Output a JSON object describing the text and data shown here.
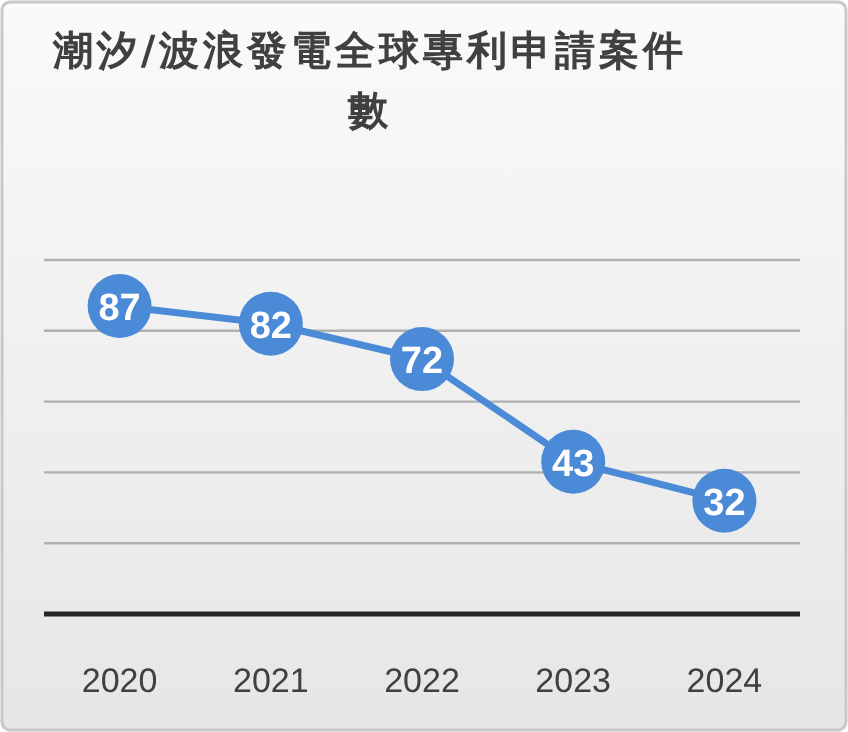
{
  "chart_data": {
    "type": "line",
    "title": "潮汐/波浪發電全球專利申請案件數",
    "categories": [
      "2020",
      "2021",
      "2022",
      "2023",
      "2024"
    ],
    "series": [
      {
        "color": "#4a8ad6",
        "values": [
          87,
          82,
          72,
          43,
          32
        ]
      }
    ],
    "ylim": [
      0,
      100
    ],
    "yticks": [
      {
        "value": 0,
        "label": null
      },
      {
        "value": 20,
        "label": null
      },
      {
        "value": 40,
        "label": null
      },
      {
        "value": 60,
        "label": null
      },
      {
        "value": 80,
        "label": null
      },
      {
        "value": 100,
        "label": null
      }
    ],
    "tick_labels": "x",
    "grid": "y",
    "data_labels": true,
    "marker": "circle",
    "line_style": "solid"
  }
}
